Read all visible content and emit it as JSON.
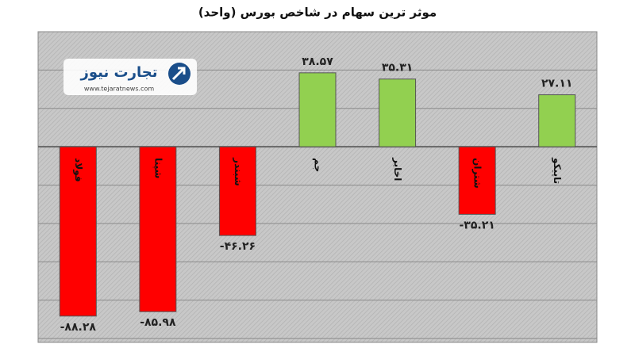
{
  "chart_data": {
    "type": "bar",
    "title": "موثر ترین سهام در شاخص بورس (واحد)",
    "watermark": {
      "name": "تجارت نیوز",
      "url": "www.tejaratnews.com"
    },
    "categories": [
      "فولاد",
      "شپنا",
      "شبندر",
      "جم",
      "اخابر",
      "شتران",
      "تاپیکو"
    ],
    "values": [
      -88.28,
      -85.98,
      -46.26,
      38.57,
      35.31,
      -35.21,
      27.11
    ],
    "value_labels": [
      "-۸۸.۲۸",
      "-۸۵.۹۸",
      "-۴۶.۲۶",
      "۳۸.۵۷",
      "۳۵.۳۱",
      "-۳۵.۲۱",
      "۲۷.۱۱"
    ],
    "positive_color": "#92d050",
    "negative_color": "#ff0000",
    "ylim": [
      -102,
      60
    ],
    "yticks": [
      -100,
      -80,
      -60,
      -40,
      -20,
      0,
      20,
      40,
      60
    ],
    "grid": true
  }
}
